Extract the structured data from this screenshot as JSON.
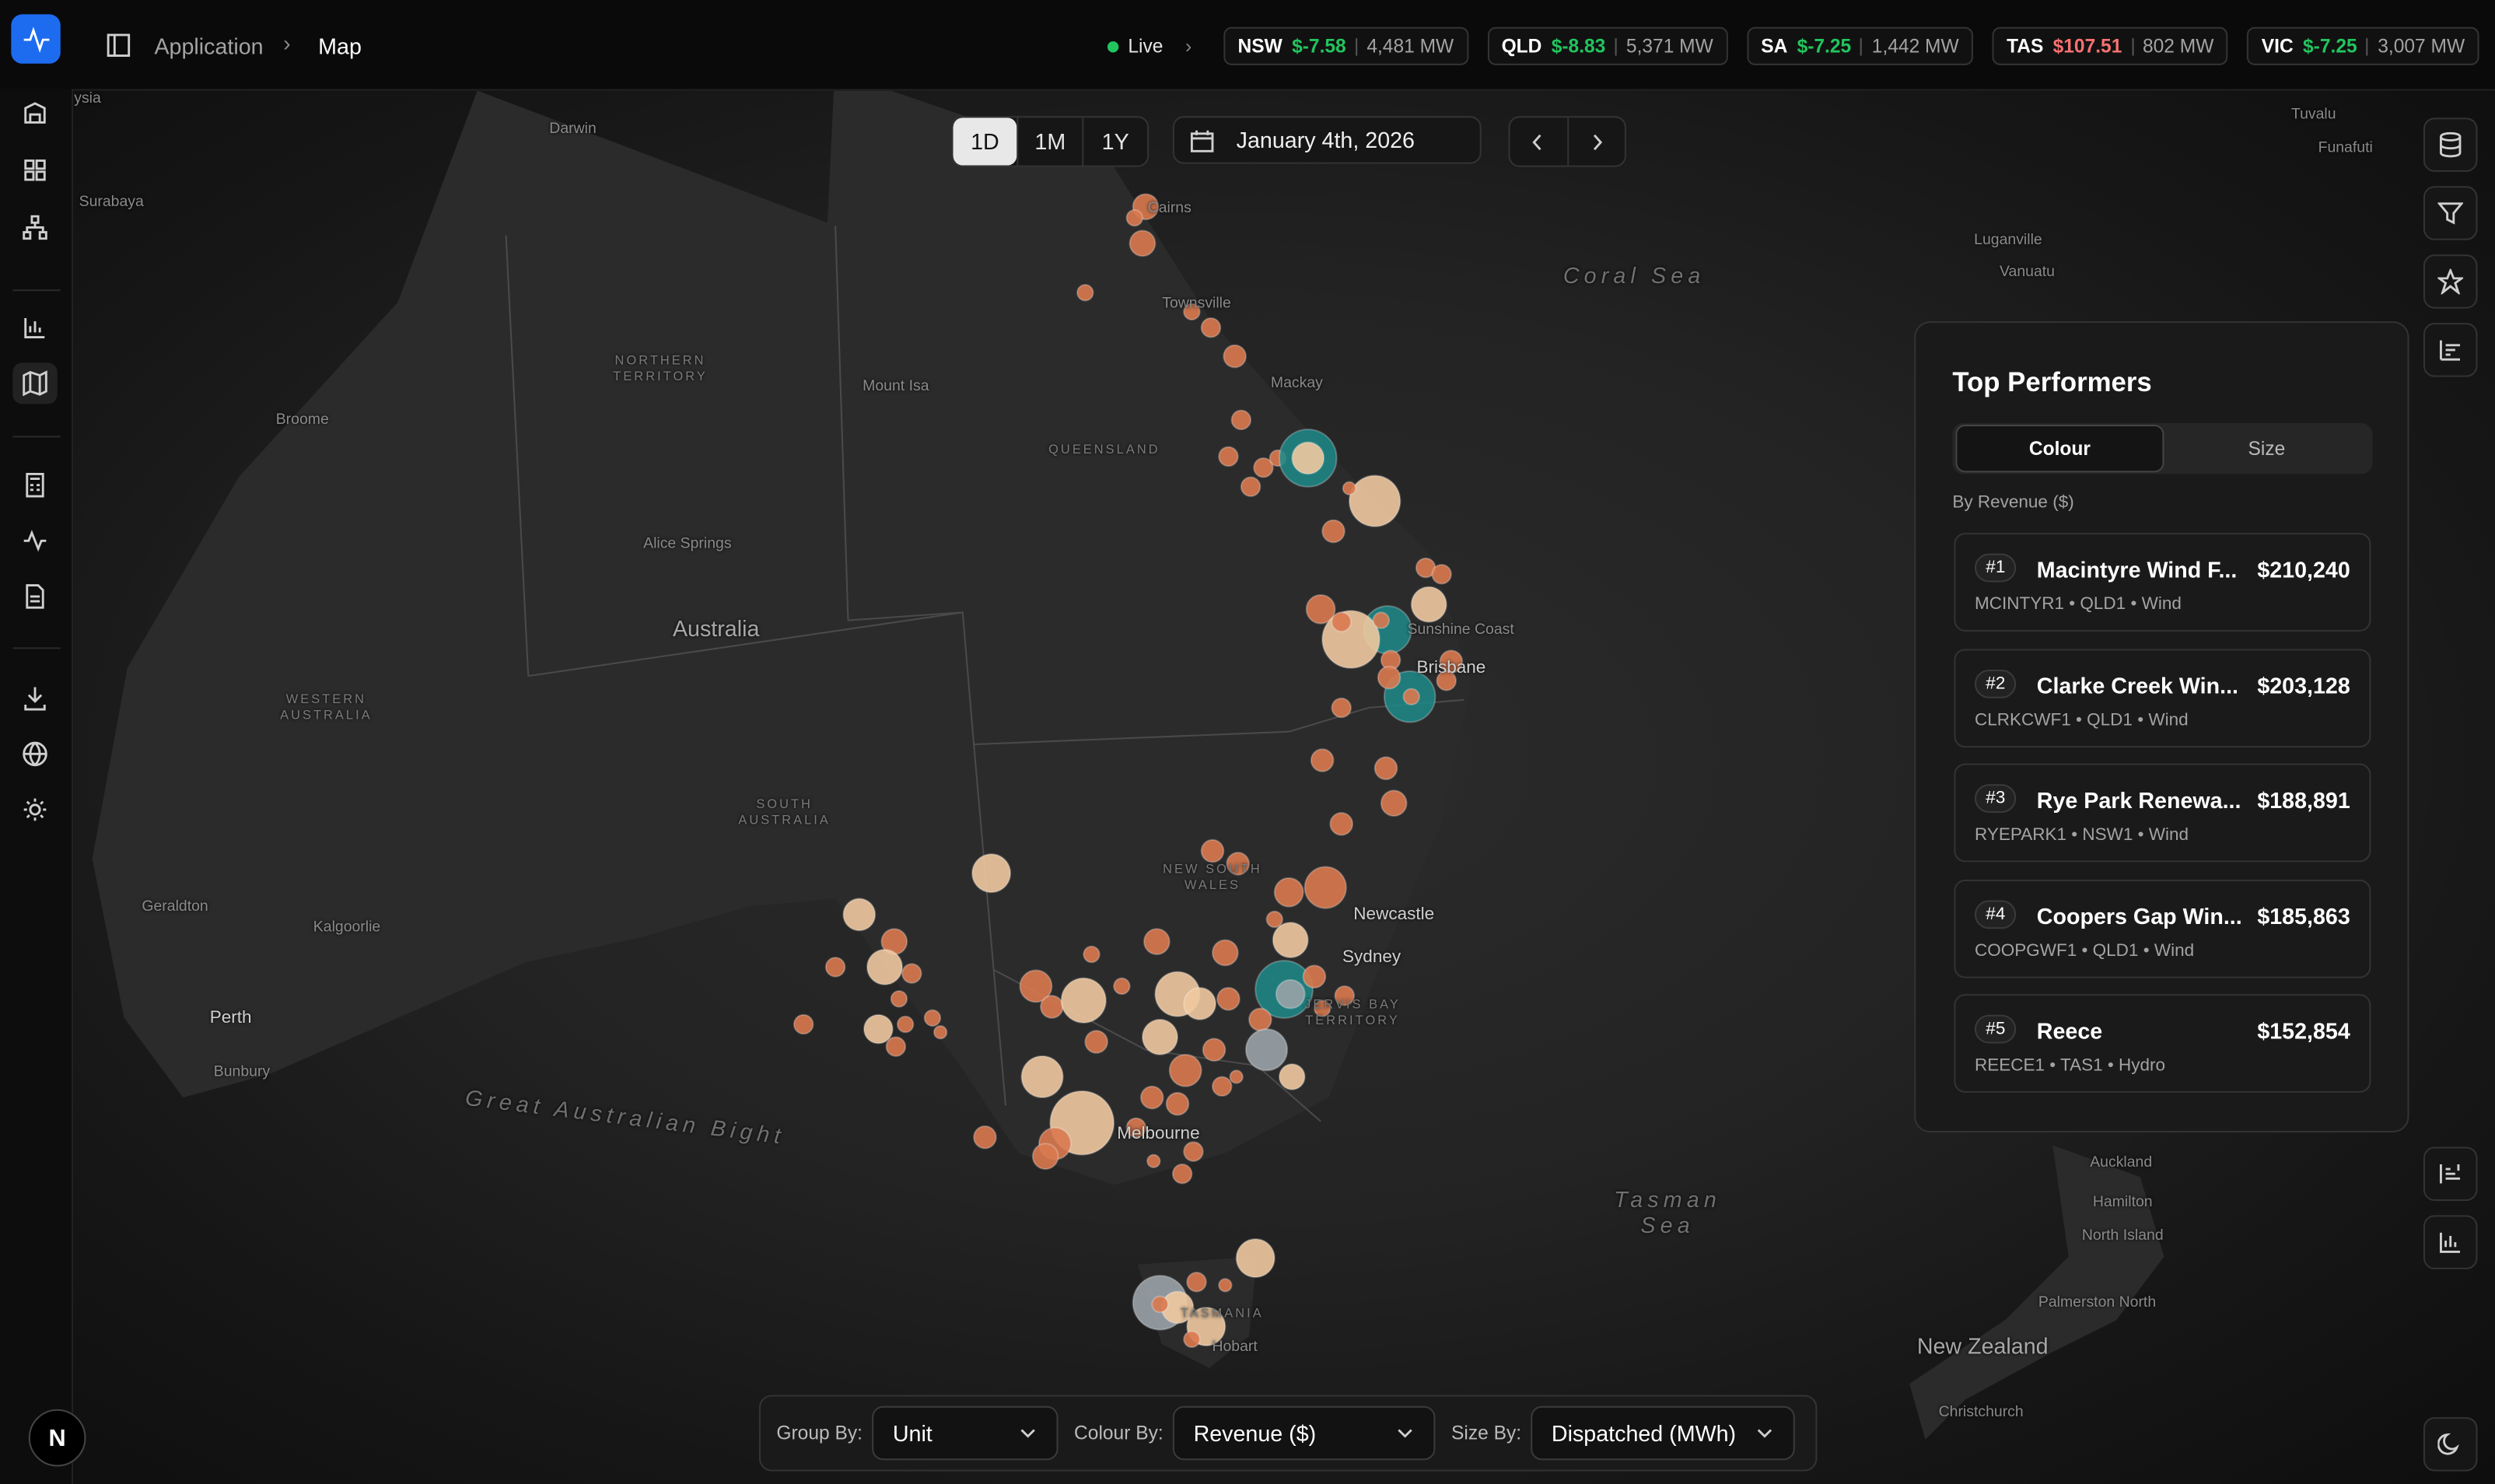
{
  "nav": {
    "breadcrumb": [
      "Application",
      "Map"
    ]
  },
  "status": {
    "live": "Live",
    "regions": [
      {
        "name": "NSW",
        "price": "$-7.58",
        "demand": "4,481 MW",
        "price_color": "#22c55e"
      },
      {
        "name": "QLD",
        "price": "$-8.83",
        "demand": "5,371 MW",
        "price_color": "#22c55e"
      },
      {
        "name": "SA",
        "price": "$-7.25",
        "demand": "1,442 MW",
        "price_color": "#22c55e"
      },
      {
        "name": "TAS",
        "price": "$107.51",
        "demand": "802 MW",
        "price_color": "#f87171"
      },
      {
        "name": "VIC",
        "price": "$-7.25",
        "demand": "3,007 MW",
        "price_color": "#22c55e"
      }
    ]
  },
  "toolbar": {
    "ranges": [
      "1D",
      "1M",
      "1Y"
    ],
    "active_range": "1D",
    "date": "January 4th, 2026"
  },
  "panel": {
    "title": "Top Performers",
    "tabs": [
      "Colour",
      "Size"
    ],
    "active_tab": "Colour",
    "subtitle": "By Revenue ($)",
    "items": [
      {
        "rank": "#1",
        "name": "Macintyre Wind F...",
        "value": "$210,240",
        "meta": "MCINTYR1 • QLD1 • Wind"
      },
      {
        "rank": "#2",
        "name": "Clarke Creek Win...",
        "value": "$203,128",
        "meta": "CLRKCWF1 • QLD1 • Wind"
      },
      {
        "rank": "#3",
        "name": "Rye Park Renewa...",
        "value": "$188,891",
        "meta": "RYEPARK1 • NSW1 • Wind"
      },
      {
        "rank": "#4",
        "name": "Coopers Gap Win...",
        "value": "$185,863",
        "meta": "COOPGWF1 • QLD1 • Wind"
      },
      {
        "rank": "#5",
        "name": "Reece",
        "value": "$152,854",
        "meta": "REECE1 • TAS1 • Hydro"
      }
    ]
  },
  "controls": [
    {
      "label": "Group By:",
      "value": "Unit"
    },
    {
      "label": "Colour By:",
      "value": "Revenue ($)"
    },
    {
      "label": "Size By:",
      "value": "Dispatched (MWh)"
    }
  ],
  "avatar": "N",
  "map_labels": [
    "ysia",
    "Darwin",
    "Surabaya",
    "NORTHERN TERRITORY",
    "Mount Isa",
    "Broome",
    "QUEENSLAND",
    "Alice Springs",
    "Australia",
    "WESTERN AUSTRALIA",
    "SOUTH AUSTRALIA",
    "NEW SOUTH WALES",
    "Geraldton",
    "Kalgoorlie",
    "Perth",
    "Bunbury",
    "Great Australian Bight",
    "Townsville",
    "Mackay",
    "Sunshine Coast",
    "Brisbane",
    "Newcastle",
    "Sydney",
    "JERVIS BAY TERRITORY",
    "Melbourne",
    "TASMANIA",
    "Hobart",
    "Coral Sea",
    "Tasman Sea",
    "Tuvalu",
    "Funafuti",
    "Luganville",
    "Vanuatu",
    "Auckland",
    "Hamilton",
    "North Island",
    "Palmerston North",
    "New Zealand",
    "Christchurch",
    "Cairns"
  ]
}
